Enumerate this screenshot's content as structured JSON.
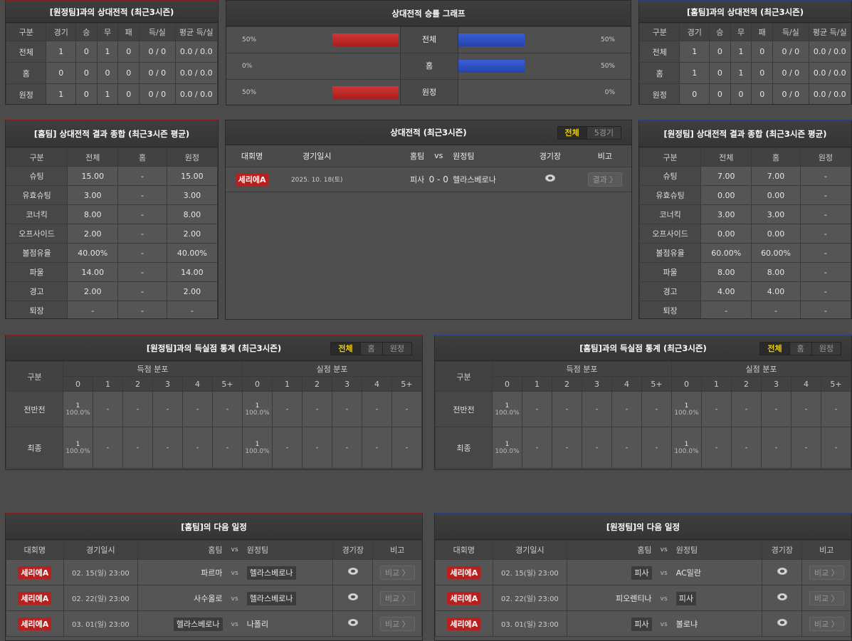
{
  "h2h_away": {
    "title": "[원정팀]과의 상대전적 (최근3시즌)",
    "headers": [
      "구분",
      "경기",
      "승",
      "무",
      "패",
      "득/실",
      "평균 득/실"
    ],
    "rows": [
      [
        "전체",
        "1",
        "0",
        "1",
        "0",
        "0 / 0",
        "0.0 / 0.0"
      ],
      [
        "홈",
        "0",
        "0",
        "0",
        "0",
        "0 / 0",
        "0.0 / 0.0"
      ],
      [
        "원정",
        "1",
        "0",
        "1",
        "0",
        "0 / 0",
        "0.0 / 0.0"
      ]
    ]
  },
  "graph": {
    "title": "상대전적 승률 그래프",
    "accent_home": "#c42a2a",
    "accent_away": "#2b4fc2",
    "rows": [
      {
        "label": "전체",
        "left": "50%",
        "left_value": 50,
        "right": "50%",
        "right_value": 50
      },
      {
        "label": "홈",
        "left": "0%",
        "left_value": 0,
        "right": "50%",
        "right_value": 50
      },
      {
        "label": "원정",
        "left": "50%",
        "left_value": 50,
        "right": "0%",
        "right_value": 0
      }
    ]
  },
  "h2h_home": {
    "title": "[홈팀]과의 상대전적 (최근3시즌)",
    "headers": [
      "구분",
      "경기",
      "승",
      "무",
      "패",
      "득/실",
      "평균 득/실"
    ],
    "rows": [
      [
        "전체",
        "1",
        "0",
        "1",
        "0",
        "0 / 0",
        "0.0 / 0.0"
      ],
      [
        "홈",
        "1",
        "0",
        "1",
        "0",
        "0 / 0",
        "0.0 / 0.0"
      ],
      [
        "원정",
        "0",
        "0",
        "0",
        "0",
        "0 / 0",
        "0.0 / 0.0"
      ]
    ]
  },
  "summary_home": {
    "title": "[홈팀] 상대전적 결과 종합 (최근3시즌 평균)",
    "headers": [
      "구분",
      "전체",
      "홈",
      "원정"
    ],
    "rows": [
      [
        "슈팅",
        "15.00",
        "-",
        "15.00"
      ],
      [
        "유효슈팅",
        "3.00",
        "-",
        "3.00"
      ],
      [
        "코너킥",
        "8.00",
        "-",
        "8.00"
      ],
      [
        "오프사이드",
        "2.00",
        "-",
        "2.00"
      ],
      [
        "볼점유율",
        "40.00%",
        "-",
        "40.00%"
      ],
      [
        "파울",
        "14.00",
        "-",
        "14.00"
      ],
      [
        "경고",
        "2.00",
        "-",
        "2.00"
      ],
      [
        "퇴장",
        "-",
        "-",
        "-"
      ]
    ]
  },
  "matches": {
    "title": "상대전적 (최근3시즌)",
    "tabs": [
      "전체",
      "5경기"
    ],
    "headers": [
      "대회명",
      "경기일시",
      "홈팀",
      "vs",
      "원정팀",
      "경기장",
      "비고"
    ],
    "rows": [
      {
        "league": "세리에A",
        "date": "2025. 10. 18(토)",
        "home": "피사",
        "score": "0 - 0",
        "away": "헬라스베로나",
        "button": "결과 〉"
      }
    ]
  },
  "summary_away": {
    "title": "[원정팀] 상대전적 결과 종합 (최근3시즌 평균)",
    "headers": [
      "구분",
      "전체",
      "홈",
      "원정"
    ],
    "rows": [
      [
        "슈팅",
        "7.00",
        "7.00",
        "-"
      ],
      [
        "유효슈팅",
        "0.00",
        "0.00",
        "-"
      ],
      [
        "코너킥",
        "3.00",
        "3.00",
        "-"
      ],
      [
        "오프사이드",
        "0.00",
        "0.00",
        "-"
      ],
      [
        "볼점유율",
        "60.00%",
        "60.00%",
        "-"
      ],
      [
        "파울",
        "8.00",
        "8.00",
        "-"
      ],
      [
        "경고",
        "4.00",
        "4.00",
        "-"
      ],
      [
        "퇴장",
        "-",
        "-",
        "-"
      ]
    ]
  },
  "goals_away": {
    "title": "[원정팀]과의 득실점 통계 (최근3시즌)",
    "tabs": [
      "전체",
      "홈",
      "원정"
    ],
    "label_col": "구분",
    "group_for": "득점 분포",
    "group_against": "실점 분포",
    "cols": [
      "0",
      "1",
      "2",
      "3",
      "4",
      "5+"
    ],
    "rows": [
      {
        "label": "전반전",
        "cells": [
          [
            "1",
            "100.0%"
          ],
          [
            "-"
          ],
          [
            "-"
          ],
          [
            "-"
          ],
          [
            "-"
          ],
          [
            "-"
          ],
          [
            "1",
            "100.0%"
          ],
          [
            "-"
          ],
          [
            "-"
          ],
          [
            "-"
          ],
          [
            "-"
          ],
          [
            "-"
          ]
        ]
      },
      {
        "label": "최종",
        "cells": [
          [
            "1",
            "100.0%"
          ],
          [
            "-"
          ],
          [
            "-"
          ],
          [
            "-"
          ],
          [
            "-"
          ],
          [
            "-"
          ],
          [
            "1",
            "100.0%"
          ],
          [
            "-"
          ],
          [
            "-"
          ],
          [
            "-"
          ],
          [
            "-"
          ],
          [
            "-"
          ]
        ]
      }
    ]
  },
  "goals_home": {
    "title": "[홈팀]과의 득실점 통계 (최근3시즌)",
    "tabs": [
      "전체",
      "홈",
      "원정"
    ],
    "label_col": "구분",
    "group_for": "득점 분포",
    "group_against": "실점 분포",
    "cols": [
      "0",
      "1",
      "2",
      "3",
      "4",
      "5+"
    ],
    "rows": [
      {
        "label": "전반전",
        "cells": [
          [
            "1",
            "100.0%"
          ],
          [
            "-"
          ],
          [
            "-"
          ],
          [
            "-"
          ],
          [
            "-"
          ],
          [
            "-"
          ],
          [
            "1",
            "100.0%"
          ],
          [
            "-"
          ],
          [
            "-"
          ],
          [
            "-"
          ],
          [
            "-"
          ],
          [
            "-"
          ]
        ]
      },
      {
        "label": "최종",
        "cells": [
          [
            "1",
            "100.0%"
          ],
          [
            "-"
          ],
          [
            "-"
          ],
          [
            "-"
          ],
          [
            "-"
          ],
          [
            "-"
          ],
          [
            "1",
            "100.0%"
          ],
          [
            "-"
          ],
          [
            "-"
          ],
          [
            "-"
          ],
          [
            "-"
          ],
          [
            "-"
          ]
        ]
      }
    ]
  },
  "next_home": {
    "title": "[홈팀]의 다음 일정",
    "headers": [
      "대회명",
      "경기일시",
      "홈팀",
      "vs",
      "원정팀",
      "경기장",
      "비고"
    ],
    "rows": [
      {
        "league": "세리에A",
        "date": "02. 15(일) 23:00",
        "home": "파르마",
        "vs": "vs",
        "away": "헬라스베로나",
        "hl": "away",
        "button": "비교 〉"
      },
      {
        "league": "세리에A",
        "date": "02. 22(일) 23:00",
        "home": "사수올로",
        "vs": "vs",
        "away": "헬라스베로나",
        "hl": "away",
        "button": "비교 〉"
      },
      {
        "league": "세리에A",
        "date": "03. 01(일) 23:00",
        "home": "헬라스베로나",
        "vs": "vs",
        "away": "나폴리",
        "hl": "home",
        "button": "비교 〉"
      }
    ]
  },
  "next_away": {
    "title": "[원정팀]의 다음 일정",
    "headers": [
      "대회명",
      "경기일시",
      "홈팀",
      "vs",
      "원정팀",
      "경기장",
      "비고"
    ],
    "rows": [
      {
        "league": "세리에A",
        "date": "02. 15(일) 23:00",
        "home": "피사",
        "vs": "vs",
        "away": "AC밀란",
        "hl": "home",
        "button": "비교 〉"
      },
      {
        "league": "세리에A",
        "date": "02. 22(일) 23:00",
        "home": "피오렌티나",
        "vs": "vs",
        "away": "피사",
        "hl": "away",
        "button": "비교 〉"
      },
      {
        "league": "세리에A",
        "date": "03. 01(일) 23:00",
        "home": "피사",
        "vs": "vs",
        "away": "볼로냐",
        "hl": "home",
        "button": "비교 〉"
      }
    ]
  }
}
